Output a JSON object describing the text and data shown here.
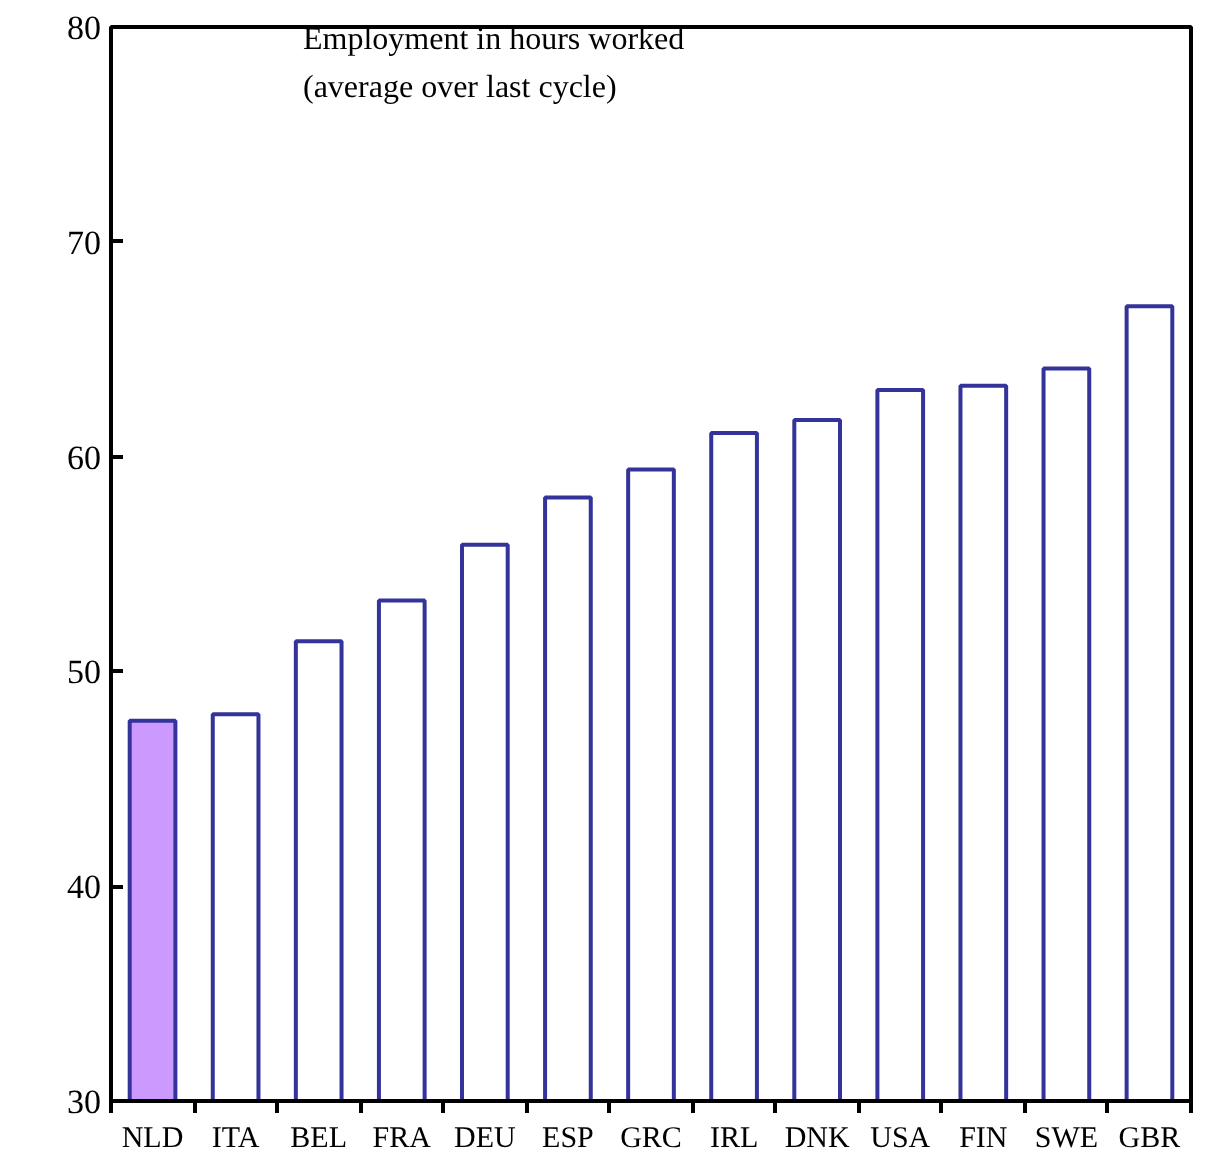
{
  "chart_data": {
    "type": "bar",
    "categories": [
      "NLD",
      "ITA",
      "BEL",
      "FRA",
      "DEU",
      "ESP",
      "GRC",
      "IRL",
      "DNK",
      "USA",
      "FIN",
      "SWE",
      "GBR"
    ],
    "values": [
      47.7,
      48.0,
      51.4,
      53.3,
      55.9,
      58.1,
      59.4,
      61.1,
      61.7,
      63.1,
      63.3,
      64.1,
      67.0
    ],
    "colors": [
      "#cc99ff",
      "#ffffff",
      "#ffffff",
      "#ffffff",
      "#ffffff",
      "#ffffff",
      "#ffffff",
      "#ffffff",
      "#ffffff",
      "#ffffff",
      "#ffffff",
      "#ffffff",
      "#ffffff"
    ],
    "annotations": [
      "Employment in hours worked",
      "(average over last cycle)"
    ],
    "ylim": [
      30,
      80
    ],
    "yticks": [
      30,
      40,
      50,
      60,
      70,
      80
    ],
    "grid": false
  }
}
